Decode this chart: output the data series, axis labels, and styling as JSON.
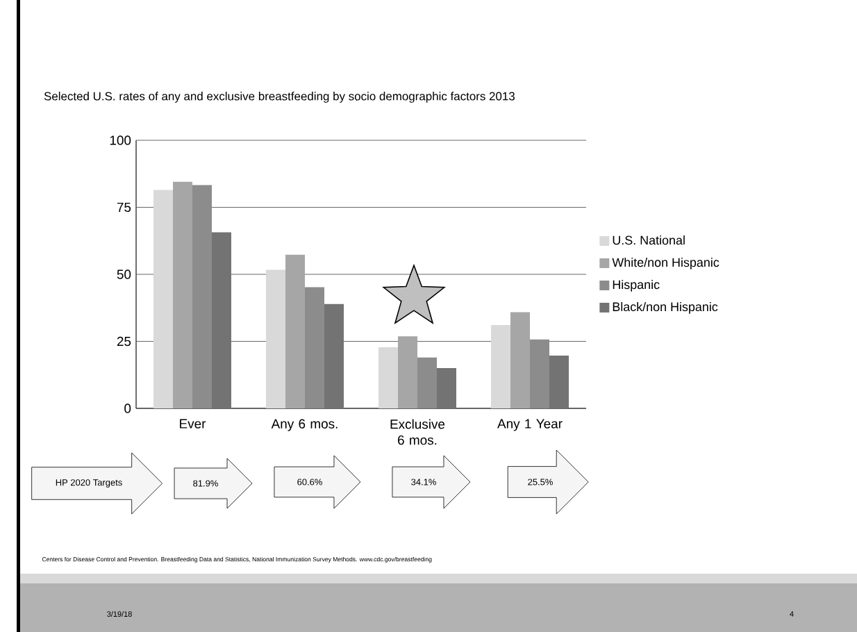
{
  "chart_data": {
    "type": "bar",
    "title": "Selected U.S. rates of any and exclusive breastfeeding by socio demographic factors 2013",
    "categories": [
      "Ever",
      "Any 6 mos.",
      "Exclusive 6 mos.",
      "Any 1 Year"
    ],
    "series": [
      {
        "name": "U.S. National",
        "color": "#d9d9d9",
        "values": [
          81.5,
          51.7,
          22.8,
          31.1
        ]
      },
      {
        "name": "White/non Hispanic",
        "color": "#a6a6a6",
        "values": [
          84.5,
          57.3,
          26.9,
          35.9
        ]
      },
      {
        "name": "Hispanic",
        "color": "#8c8c8c",
        "values": [
          83.3,
          45.2,
          19.0,
          25.7
        ]
      },
      {
        "name": "Black/non Hispanic",
        "color": "#737373",
        "values": [
          65.7,
          38.9,
          15.0,
          19.7
        ]
      }
    ],
    "ylim": [
      0,
      100
    ],
    "yticks": [
      0,
      25,
      50,
      75,
      100
    ],
    "grid": "y",
    "legend": "right",
    "annotations": [
      "HP 2020 Targets",
      "81.9%",
      "60.6%",
      "34.1%",
      "25.5%",
      "Centers for Disease Control and Prevention. Breastfeeding Data and Statistics, National Immunization Survey Methods. www.cdc.gov/breastfeeding",
      "3/19/18",
      "4"
    ]
  }
}
